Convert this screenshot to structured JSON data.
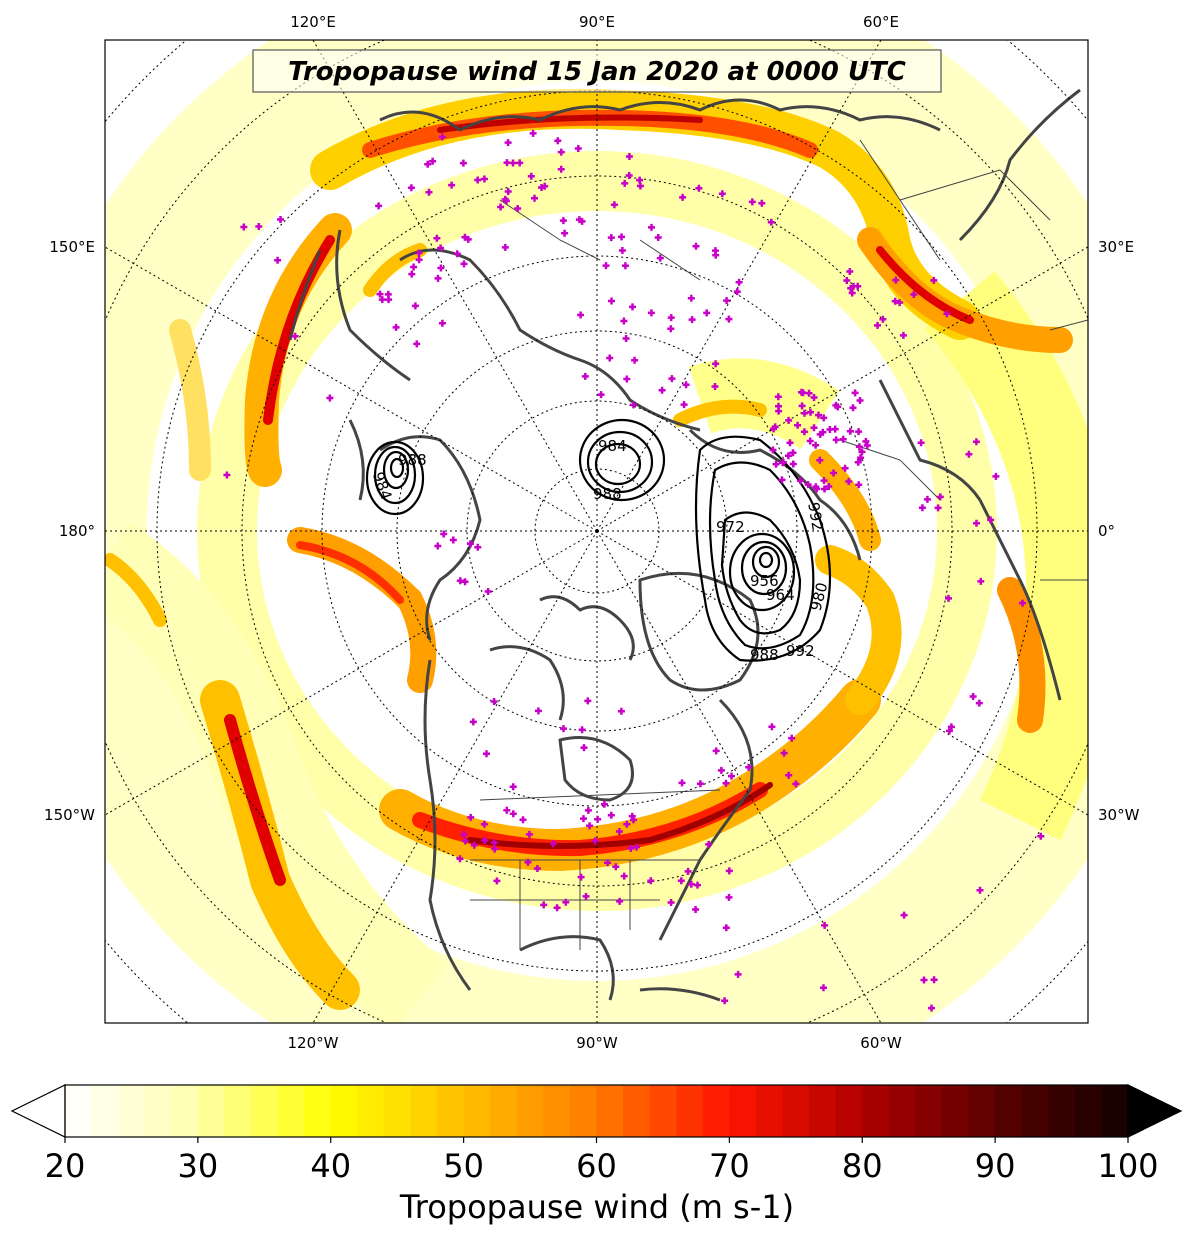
{
  "title": "Tropopause wind 15 Jan 2020 at 0000 UTC",
  "colorbar": {
    "label": "Tropopause wind (m s-1)",
    "min": 20,
    "max": 100,
    "ticks": [
      "20",
      "30",
      "40",
      "50",
      "60",
      "70",
      "80",
      "90",
      "100"
    ],
    "extend": "both",
    "colormap": "hot_r"
  },
  "graticule": {
    "top_labels": [
      "120°E",
      "90°E",
      "60°E"
    ],
    "bottom_labels": [
      "120°W",
      "90°W",
      "60°W"
    ],
    "left_labels": [
      "150°E",
      "180°",
      "150°W"
    ],
    "right_labels": [
      "30°E",
      "0°",
      "30°W"
    ]
  },
  "contours": {
    "description_labels": [
      "984",
      "988",
      "984",
      "988",
      "972",
      "956",
      "964",
      "980",
      "988",
      "992",
      "992"
    ]
  },
  "colors": {
    "coastline": "#444444",
    "station_marker": "#c800c8",
    "contour": "#000000"
  }
}
